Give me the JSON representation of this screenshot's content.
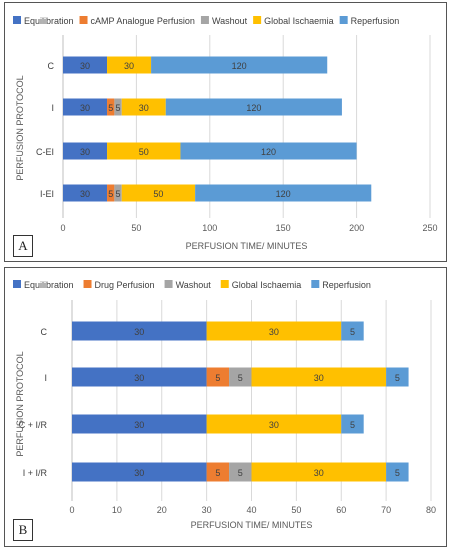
{
  "colors": {
    "Equilibration": "#4472c4",
    "cAMP Analogue Perfusion": "#ed7d31",
    "Drug Perfusion": "#ed7d31",
    "Washout": "#a5a5a5",
    "Global Ischaemia": "#ffc000",
    "Reperfusion": "#5b9bd5"
  },
  "chart_data": [
    {
      "type": "bar",
      "orientation": "horizontal",
      "stacked": true,
      "panel_label": "A",
      "legend": [
        "Equilibration",
        "cAMP Analogue Perfusion",
        "Washout",
        "Global Ischaemia",
        "Reperfusion"
      ],
      "legend_position": "top",
      "xlabel": "PERFUSION TIME/ MINUTES",
      "ylabel": "PERFUSION PROTOCOL",
      "xlim": [
        0,
        250
      ],
      "xticks": [
        "0",
        "50",
        "100",
        "150",
        "200",
        "250"
      ],
      "grid": true,
      "categories": [
        "C",
        "I",
        "C-EI",
        "I-EI"
      ],
      "series": [
        {
          "name": "Equilibration",
          "values": [
            30,
            30,
            30,
            30
          ],
          "labels": [
            "30",
            "30",
            "30",
            "30"
          ]
        },
        {
          "name": "cAMP Analogue Perfusion",
          "values": [
            0,
            5,
            0,
            5
          ],
          "labels": [
            "",
            "5",
            "",
            "5"
          ]
        },
        {
          "name": "Washout",
          "values": [
            0,
            5,
            0,
            5
          ],
          "labels": [
            "",
            "5",
            "",
            "5"
          ]
        },
        {
          "name": "Global Ischaemia",
          "values": [
            30,
            30,
            50,
            50
          ],
          "labels": [
            "30",
            "30",
            "50",
            "50"
          ]
        },
        {
          "name": "Reperfusion",
          "values": [
            120,
            120,
            120,
            120
          ],
          "labels": [
            "120",
            "120",
            "120",
            "120"
          ]
        }
      ]
    },
    {
      "type": "bar",
      "orientation": "horizontal",
      "stacked": true,
      "panel_label": "B",
      "legend": [
        "Equilibration",
        "Drug Perfusion",
        "Washout",
        "Global Ischaemia",
        "Reperfusion"
      ],
      "legend_position": "top",
      "xlabel": "PERFUSION TIME/ MINUTES",
      "ylabel": "PERFUSION PROTOCOL",
      "xlim": [
        0,
        80
      ],
      "xticks": [
        "0",
        "10",
        "20",
        "30",
        "40",
        "50",
        "60",
        "70",
        "80"
      ],
      "grid": true,
      "categories": [
        "C",
        "I",
        "C + I/R",
        "I + I/R"
      ],
      "series": [
        {
          "name": "Equilibration",
          "values": [
            30,
            30,
            30,
            30
          ],
          "labels": [
            "30",
            "30",
            "30",
            "30"
          ]
        },
        {
          "name": "Drug Perfusion",
          "values": [
            0,
            5,
            0,
            5
          ],
          "labels": [
            "",
            "5",
            "",
            "5"
          ]
        },
        {
          "name": "Washout",
          "values": [
            0,
            5,
            0,
            5
          ],
          "labels": [
            "",
            "5",
            "",
            "5"
          ]
        },
        {
          "name": "Global Ischaemia",
          "values": [
            30,
            30,
            30,
            30
          ],
          "labels": [
            "30",
            "30",
            "30",
            "30"
          ]
        },
        {
          "name": "Reperfusion",
          "values": [
            5,
            5,
            5,
            5
          ],
          "labels": [
            "5",
            "5",
            "5",
            "5"
          ]
        }
      ]
    }
  ]
}
